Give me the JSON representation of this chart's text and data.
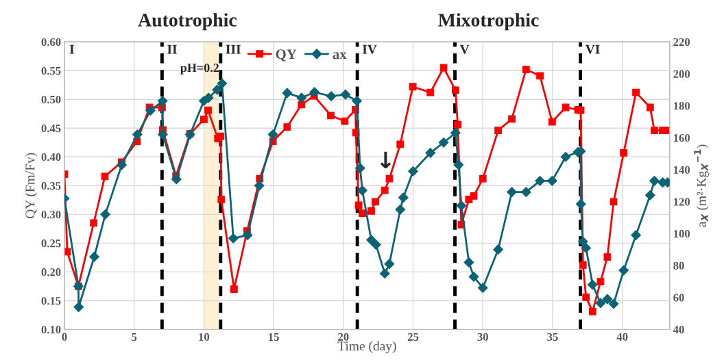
{
  "chart_data": {
    "type": "line",
    "xlabel": "Time (day)",
    "ylabel": "QY (Fm/Fv)",
    "y2label": "a$_{X}$ (m²·Kg$_{X}$$^{−1}$)",
    "xlim": [
      0,
      43.4
    ],
    "xticks": [
      0,
      5,
      10,
      15,
      20,
      25,
      30,
      35,
      40
    ],
    "ylim": [
      0.1,
      0.6
    ],
    "yticks": [
      {
        "value": 0.1,
        "label": "0.10"
      },
      {
        "value": 0.15,
        "label": "0.15"
      },
      {
        "value": 0.2,
        "label": "0.20"
      },
      {
        "value": 0.25,
        "label": "0.25"
      },
      {
        "value": 0.3,
        "label": "0.30"
      },
      {
        "value": 0.35,
        "label": "0.35"
      },
      {
        "value": 0.4,
        "label": "0.40"
      },
      {
        "value": 0.45,
        "label": "0.45"
      },
      {
        "value": 0.5,
        "label": "0.50"
      },
      {
        "value": 0.55,
        "label": "0.55"
      },
      {
        "value": 0.6,
        "label": "0.60"
      }
    ],
    "y2lim": [
      40,
      220
    ],
    "y2ticks": [
      40,
      60,
      80,
      100,
      120,
      140,
      160,
      180,
      200,
      220
    ],
    "grid": true,
    "legend": "top",
    "line_style": "solid",
    "series": [
      {
        "name": "QY",
        "color": "#ff0000",
        "marker": "square",
        "x": [
          0,
          0.2,
          1.0,
          2.1,
          2.9,
          4.1,
          5.2,
          6.1,
          7.0,
          7.05,
          8.0,
          9.0,
          10.0,
          10.3,
          11.0,
          11.2,
          11.25,
          12.16,
          13.1,
          14.0,
          14.95,
          15.97,
          17.0,
          17.9,
          19.1,
          20.1,
          20.87,
          20.9,
          21.1,
          21.36,
          22.0,
          22.3,
          22.97,
          23.3,
          24.08,
          24.98,
          26.24,
          27.19,
          28.04,
          28.2,
          28.46,
          29.0,
          29.35,
          30.0,
          31.1,
          32.08,
          33.1,
          34.1,
          34.97,
          35.94,
          36.82,
          37.02,
          37.18,
          37.4,
          37.87,
          38.44,
          38.93,
          39.38,
          40.1,
          40.98,
          42.0,
          42.3,
          42.9,
          43.25
        ],
        "values": [
          0.37,
          0.235,
          0.175,
          0.285,
          0.366,
          0.391,
          0.427,
          0.486,
          0.486,
          0.447,
          0.367,
          0.44,
          0.465,
          0.481,
          0.432,
          0.436,
          0.326,
          0.17,
          0.271,
          0.362,
          0.427,
          0.452,
          0.491,
          0.506,
          0.472,
          0.462,
          0.482,
          0.442,
          0.316,
          0.302,
          0.306,
          0.322,
          0.342,
          0.362,
          0.422,
          0.522,
          0.512,
          0.555,
          0.516,
          0.456,
          0.282,
          0.326,
          0.332,
          0.362,
          0.446,
          0.466,
          0.552,
          0.541,
          0.461,
          0.486,
          0.482,
          0.481,
          0.212,
          0.156,
          0.131,
          0.183,
          0.226,
          0.322,
          0.407,
          0.512,
          0.486,
          0.446,
          0.446,
          0.446
        ]
      },
      {
        "name": "ax",
        "color": "#0b6475",
        "marker": "diamond",
        "axis": "y2",
        "x": [
          0,
          1.0,
          1.02,
          2.14,
          2.93,
          4.11,
          5.23,
          6.17,
          7.04,
          7.05,
          8.03,
          9.01,
          10.0,
          10.33,
          10.95,
          11.3,
          12.11,
          13.13,
          13.97,
          14.95,
          15.97,
          17.0,
          17.93,
          19.13,
          20.15,
          20.97,
          21.2,
          21.36,
          22.0,
          22.34,
          22.97,
          23.3,
          24.08,
          24.3,
          25.0,
          26.24,
          27.19,
          28.04,
          28.26,
          28.46,
          29.0,
          29.35,
          30.0,
          31.1,
          32.08,
          33.1,
          34.1,
          34.97,
          35.94,
          36.82,
          37.02,
          37.03,
          37.18,
          37.4,
          37.87,
          38.44,
          38.93,
          39.38,
          40.1,
          40.98,
          42.0,
          42.3,
          42.9,
          43.25
        ],
        "values": [
          122,
          67,
          54,
          85.5,
          112,
          143,
          162,
          177,
          183,
          162,
          134,
          162,
          183,
          185,
          190,
          194,
          97,
          99,
          130,
          162,
          188,
          185,
          188.5,
          186,
          187,
          183,
          141,
          127,
          96,
          93,
          75,
          81,
          115,
          122.5,
          139,
          150.5,
          157,
          163,
          143,
          117.5,
          82,
          73,
          66,
          90,
          126,
          126,
          133,
          133,
          148,
          151,
          151.5,
          118.5,
          95,
          91,
          68,
          56.5,
          59,
          56,
          77,
          99,
          124,
          133,
          132,
          132
        ]
      }
    ],
    "ref_lines": [
      {
        "axis": "x",
        "value": 7,
        "label": "II",
        "color": "#000000",
        "line_style": "dashed"
      },
      {
        "axis": "x",
        "value": 11.2,
        "label": "III",
        "color": "#000000",
        "line_style": "dashed"
      },
      {
        "axis": "x",
        "value": 21,
        "label": "IV",
        "color": "#000000",
        "line_style": "dashed"
      },
      {
        "axis": "x",
        "value": 28,
        "label": "V",
        "color": "#000000",
        "line_style": "dashed"
      },
      {
        "axis": "x",
        "value": 37,
        "label": "VI",
        "color": "#000000",
        "line_style": "dashed"
      }
    ],
    "bands": [
      {
        "axis": "x",
        "from": 10,
        "to": 11.1,
        "label": "pH=0.2",
        "color": "#fdf0d5"
      }
    ],
    "annotations": [
      "Autotrophic",
      "Mixotrophic",
      "I",
      {
        "text": "↓",
        "x": 23.3,
        "y": 0.362
      }
    ]
  }
}
